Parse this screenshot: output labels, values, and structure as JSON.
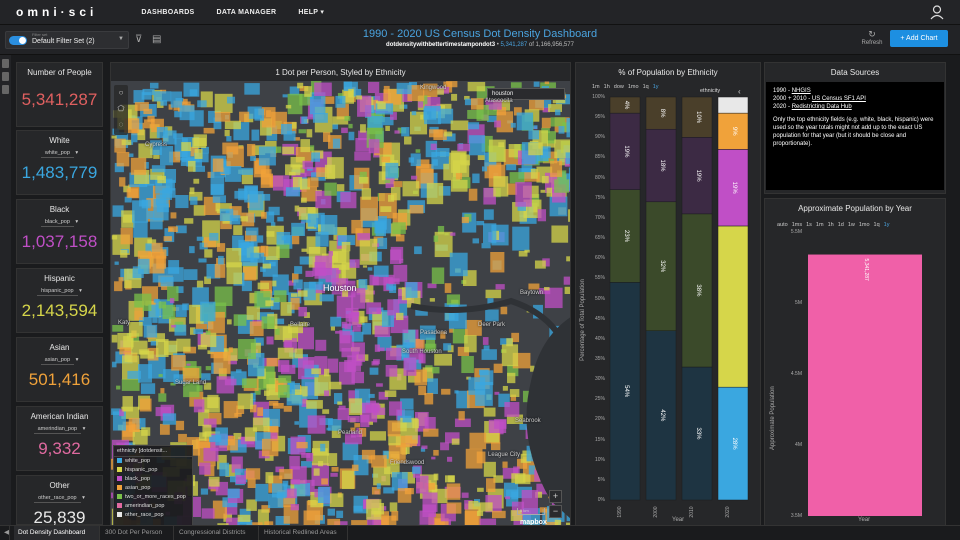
{
  "nav": {
    "logo": "omni·sci",
    "items": [
      {
        "label": "DASHBOARDS"
      },
      {
        "label": "DATA MANAGER"
      },
      {
        "label": "HELP ▾"
      }
    ]
  },
  "toolbar": {
    "filter_caption": "Filter set",
    "filter_value": "Default Filter Set (2)",
    "title": "1990 - 2020 US Census Dot Density Dashboard",
    "subtitle_table": "dotdensitywithbettertimestampondot3",
    "subtitle_count": "5,341,287",
    "subtitle_of": "of 1,166,956,577",
    "refresh_label": "Refresh",
    "add_chart_label": "+ Add Chart"
  },
  "number_cards": [
    {
      "title": "Number of People",
      "selector": "",
      "value": "5,341,287",
      "color": "#e06060"
    },
    {
      "title": "White",
      "selector": "white_pop",
      "value": "1,483,779",
      "color": "#3aa7e0"
    },
    {
      "title": "Black",
      "selector": "black_pop",
      "value": "1,037,158",
      "color": "#c04fc6"
    },
    {
      "title": "Hispanic",
      "selector": "hispanic_pop",
      "value": "2,143,594",
      "color": "#d6d64a"
    },
    {
      "title": "Asian",
      "selector": "asian_pop",
      "value": "501,416",
      "color": "#f0a23a"
    },
    {
      "title": "American Indian",
      "selector": "amerindian_pop",
      "value": "9,332",
      "color": "#e06aa0"
    },
    {
      "title": "Other",
      "selector": "other_race_pop",
      "value": "25,839",
      "color": "#e8e8e8"
    }
  ],
  "map": {
    "title": "1 Dot per Person, Styled by Ethnicity",
    "search_value": "houston",
    "city_label": "Houston",
    "place_labels": [
      "Kingwood",
      "Cypress",
      "Katy",
      "Bellaire",
      "Pasadena",
      "Deer Park",
      "South Houston",
      "Sugar Land",
      "Baytown",
      "Pearland",
      "League City",
      "Seabrook",
      "Friendswood",
      "Atascocita"
    ],
    "legend_title": "ethnicity [dotdensit...",
    "legend": [
      {
        "label": "white_pop",
        "color": "#3aa7e0"
      },
      {
        "label": "hispanic_pop",
        "color": "#d6d64a"
      },
      {
        "label": "black_pop",
        "color": "#c04fc6"
      },
      {
        "label": "asian_pop",
        "color": "#f0a23a"
      },
      {
        "label": "two_or_more_races_pop",
        "color": "#7ac24a"
      },
      {
        "label": "amerindian_pop",
        "color": "#e06aa0"
      },
      {
        "label": "other_race_pop",
        "color": "#e8e8e8"
      }
    ],
    "scale_label": "5 km",
    "attribution": "mapbox"
  },
  "stacked_chart": {
    "title": "% of Population by Ethnicity",
    "time_buttons": [
      "1m",
      "1h",
      "dow",
      "1mo",
      "1q",
      "1y"
    ],
    "active_time": "1y",
    "legend_label": "ethnicity",
    "ylabel": "Percentage of Total Population",
    "xlabel": "Year",
    "yticks": [
      "100%",
      "95%",
      "90%",
      "85%",
      "80%",
      "75%",
      "70%",
      "65%",
      "60%",
      "55%",
      "50%",
      "45%",
      "40%",
      "35%",
      "30%",
      "25%",
      "20%",
      "15%",
      "10%",
      "5%",
      "0%"
    ]
  },
  "chart_data": [
    {
      "type": "bar",
      "title": "% of Population by Ethnicity",
      "xlabel": "Year",
      "ylabel": "Percentage of Total Population",
      "ylim": [
        0,
        100
      ],
      "categories": [
        "1990",
        "2000",
        "2010",
        "2020"
      ],
      "series": [
        {
          "name": "white_pop",
          "color": "#3aa7e0",
          "values": [
            0,
            0,
            0,
            28
          ]
        },
        {
          "name": "hispanic_pop",
          "color": "#d6d64a",
          "values": [
            0,
            0,
            0,
            0
          ]
        },
        {
          "name": "",
          "color": "#1e3442",
          "values": [
            54,
            42,
            33,
            0
          ]
        },
        {
          "name": "",
          "color": "#3b4a2a",
          "values": [
            23,
            32,
            38,
            0
          ]
        },
        {
          "name": "",
          "color": "#3c2a44",
          "values": [
            19,
            18,
            19,
            0
          ]
        },
        {
          "name": "",
          "color": "#4a3f2a",
          "values": [
            4,
            8,
            10,
            0
          ]
        },
        {
          "name": "",
          "color": "#d6d64a",
          "values": [
            0,
            0,
            0,
            40
          ]
        },
        {
          "name": "",
          "color": "#c04fc6",
          "values": [
            0,
            0,
            0,
            19
          ]
        },
        {
          "name": "",
          "color": "#f0a23a",
          "values": [
            0,
            0,
            0,
            9
          ]
        },
        {
          "name": "",
          "color": "#e8e8e8",
          "values": [
            0,
            0,
            0,
            4
          ]
        }
      ],
      "labels": [
        {
          "cat": 0,
          "texts": [
            "54%",
            "23%",
            "19%",
            "4%"
          ]
        },
        {
          "cat": 1,
          "texts": [
            "42%",
            "32%",
            "18%",
            "8%"
          ]
        },
        {
          "cat": 2,
          "texts": [
            "33%",
            "38%",
            "19%",
            "10%"
          ]
        },
        {
          "cat": 3,
          "texts": [
            "28%",
            "",
            "19%",
            "9%"
          ]
        }
      ]
    },
    {
      "type": "bar",
      "title": "Approximate Population by Year",
      "xlabel": "Year",
      "ylabel": "Approximate Population",
      "ylim": [
        3500000,
        5500000
      ],
      "categories": [
        "2020"
      ],
      "values": [
        5341287
      ],
      "value_label": "5,341,287",
      "color": "#f060a8"
    }
  ],
  "data_sources": {
    "title": "Data Sources",
    "line1_prefix": "1990 - ",
    "line1_link": "NHGIS",
    "line2_prefix": "2000 + 2010 - ",
    "line2_link": "US Census SF1 API",
    "line3_prefix": "2020 - ",
    "line3_link": "Redistricting Data Hub",
    "note": "Only the top ethnicity fields (e.g. white, black, hispanic) were used so the year totals might not add up to the exact US population for that year (but it should be close and proportionate)."
  },
  "pop_chart": {
    "title": "Approximate Population by Year",
    "time_buttons": [
      "auto",
      "1ms",
      "1s",
      "1m",
      "1h",
      "1d",
      "1w",
      "1mo",
      "1q",
      "1y"
    ],
    "active_time": "1y",
    "yticks": [
      "5.5M",
      "5M",
      "4.5M",
      "4M",
      "3.5M"
    ],
    "ylabel": "Approximate Population",
    "xlabel": "Year"
  },
  "tabs": [
    {
      "label": "Dot Density Dashboard",
      "active": true
    },
    {
      "label": "300 Dot Per Person",
      "active": false
    },
    {
      "label": "Congressional Districts",
      "active": false
    },
    {
      "label": "Historical Redlined Areas",
      "active": false
    }
  ]
}
